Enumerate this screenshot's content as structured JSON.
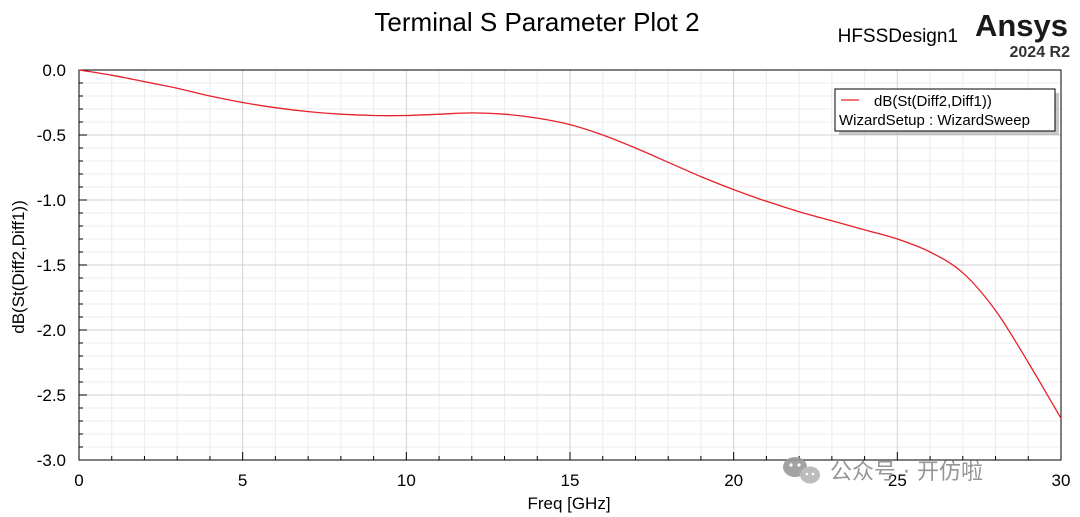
{
  "header": {
    "title": "Terminal S Parameter Plot 2",
    "design_name": "HFSSDesign1",
    "brand": "Ansys",
    "version": "2024 R2"
  },
  "watermark": {
    "text": "公众号 · 开仿啦",
    "icon": "wechat-icon"
  },
  "chart_data": {
    "type": "line",
    "title": "Terminal S Parameter Plot 2",
    "xlabel": "Freq [GHz]",
    "ylabel": "dB(St(Diff2,Diff1))",
    "xlim": [
      0,
      30
    ],
    "ylim": [
      -3.0,
      0.0
    ],
    "x_ticks": [
      0,
      5,
      10,
      15,
      20,
      25,
      30
    ],
    "x_tick_labels": [
      "0",
      "5",
      "10",
      "15",
      "20",
      "25",
      "30"
    ],
    "y_ticks": [
      0.0,
      -0.5,
      -1.0,
      -1.5,
      -2.0,
      -2.5,
      -3.0
    ],
    "y_tick_labels": [
      "0.0",
      "-0.5",
      "-1.0",
      "-1.5",
      "-2.0",
      "-2.5",
      "-3.0"
    ],
    "grid": true,
    "legend_position": "top-right",
    "series": [
      {
        "name": "dB(St(Diff2,Diff1))",
        "sub_label": "WizardSetup : WizardSweep",
        "color": "#e8202a",
        "x": [
          0,
          1,
          2,
          3,
          4,
          5,
          6,
          7,
          8,
          9,
          10,
          11,
          12,
          13,
          14,
          15,
          16,
          17,
          18,
          19,
          20,
          21,
          22,
          23,
          24,
          25,
          26,
          27,
          28,
          29,
          30
        ],
        "y": [
          0.0,
          -0.04,
          -0.09,
          -0.14,
          -0.2,
          -0.25,
          -0.29,
          -0.32,
          -0.34,
          -0.35,
          -0.35,
          -0.34,
          -0.33,
          -0.34,
          -0.37,
          -0.42,
          -0.5,
          -0.6,
          -0.71,
          -0.82,
          -0.92,
          -1.01,
          -1.09,
          -1.16,
          -1.23,
          -1.3,
          -1.4,
          -1.56,
          -1.85,
          -2.25,
          -2.68
        ]
      }
    ]
  }
}
